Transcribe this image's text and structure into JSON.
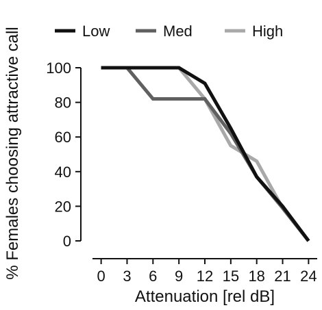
{
  "chart_data": {
    "type": "line",
    "title": "",
    "xlabel": "Attenuation [rel dB]",
    "ylabel": "% Females choosing attractive call",
    "x": [
      0,
      3,
      6,
      9,
      12,
      15,
      18,
      21,
      24
    ],
    "xlim": [
      -1,
      25
    ],
    "ylim": [
      0,
      100
    ],
    "x_ticks": [
      "0",
      "3",
      "6",
      "9",
      "12",
      "15",
      "18",
      "21",
      "24"
    ],
    "y_ticks": [
      "0",
      "20",
      "40",
      "60",
      "80",
      "100"
    ],
    "grid": false,
    "legend_position": "top",
    "series": [
      {
        "name": "Low",
        "color": "#111111",
        "values": [
          100,
          100,
          100,
          100,
          91,
          65,
          37,
          20,
          0
        ]
      },
      {
        "name": "Med",
        "color": "#606060",
        "values": [
          100,
          100,
          82,
          82,
          82,
          62,
          37,
          19,
          0
        ]
      },
      {
        "name": "High",
        "color": "#a9a9a9",
        "values": [
          100,
          100,
          100,
          100,
          82,
          55,
          46,
          19,
          0
        ]
      }
    ]
  }
}
